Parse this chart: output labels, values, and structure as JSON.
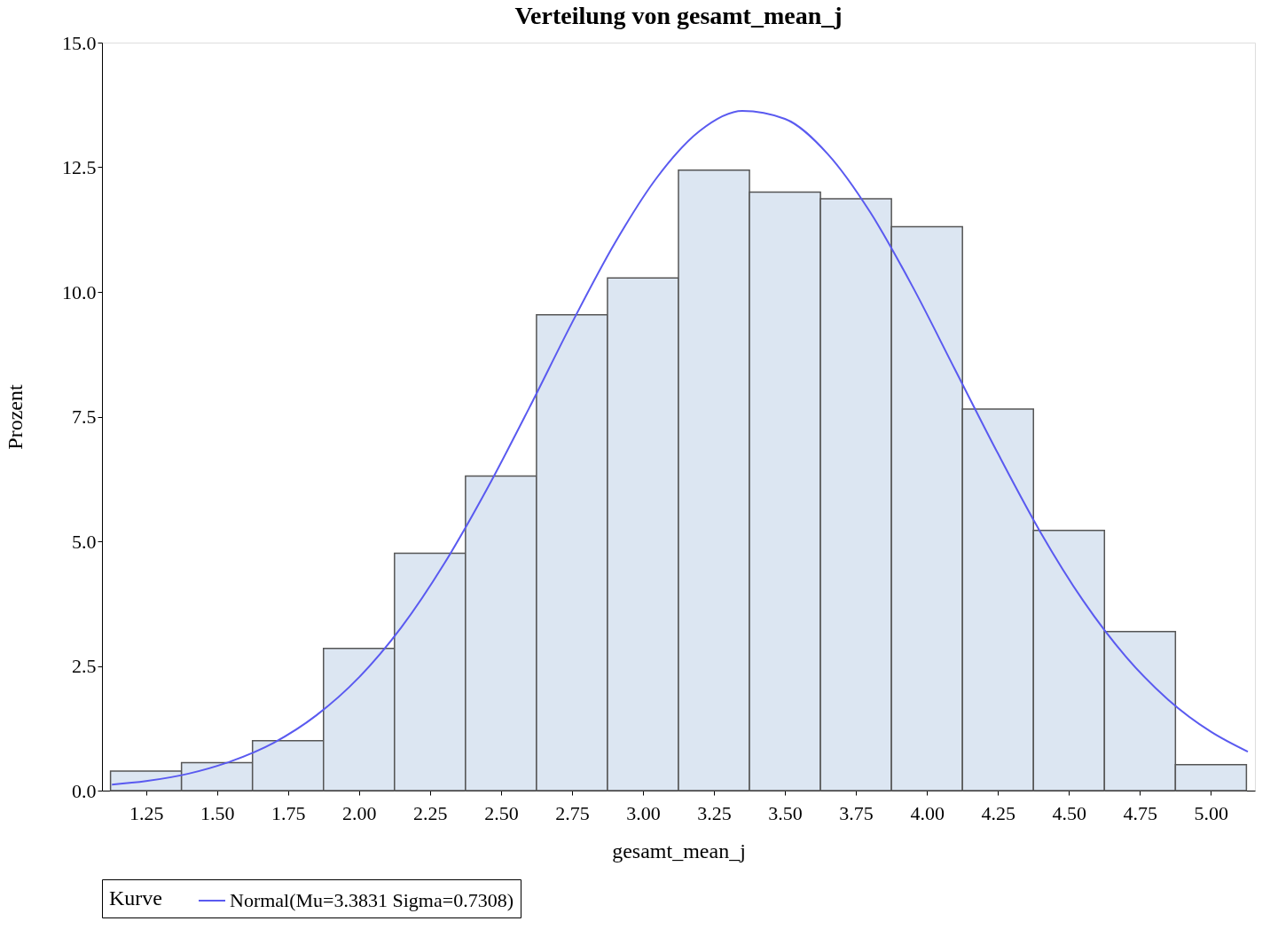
{
  "chart_data": {
    "type": "histogram",
    "title": "Verteilung von gesamt_mean_j",
    "xlabel": "gesamt_mean_j",
    "ylabel": "Prozent",
    "legend_title": "Kurve",
    "legend": "bottom",
    "grid": false,
    "bins": [
      1.125,
      1.375,
      1.625,
      1.875,
      2.125,
      2.375,
      2.625,
      2.875,
      3.125,
      3.375,
      3.625,
      3.875,
      4.125,
      4.375,
      4.625,
      4.875,
      5.125
    ],
    "series": [
      {
        "color": "#dce6f2",
        "values": [
          0.39,
          0.56,
          1.0,
          2.85,
          4.76,
          6.31,
          9.54,
          10.28,
          12.44,
          12.0,
          11.87,
          11.31,
          7.65,
          5.22,
          3.19,
          0.52
        ]
      },
      {
        "type": "line",
        "name": "Normal(Mu=3.3831 Sigma=0.7308)",
        "color": "#5a5af0",
        "x": [
          1.13,
          1.25,
          1.4,
          1.55,
          1.7,
          1.85,
          2.0,
          2.15,
          2.3,
          2.45,
          2.6,
          2.75,
          2.9,
          3.05,
          3.2,
          3.35,
          3.5,
          3.65,
          3.8,
          3.95,
          4.1,
          4.25,
          4.4,
          4.55,
          4.7,
          4.85,
          5.0,
          5.13
        ],
        "values": [
          0.12,
          0.19,
          0.34,
          0.59,
          0.96,
          1.51,
          2.27,
          3.28,
          4.55,
          6.04,
          7.68,
          9.38,
          10.97,
          12.3,
          13.23,
          13.63,
          13.47,
          12.77,
          11.6,
          10.1,
          8.43,
          6.76,
          5.18,
          3.81,
          2.69,
          1.82,
          1.18,
          0.78
        ]
      }
    ],
    "xlim": [
      1.095,
      5.155
    ],
    "xticks": [
      {
        "value": 1.25,
        "label": "1.25"
      },
      {
        "value": 1.5,
        "label": "1.50"
      },
      {
        "value": 1.75,
        "label": "1.75"
      },
      {
        "value": 2,
        "label": "2.00"
      },
      {
        "value": 2.25,
        "label": "2.25"
      },
      {
        "value": 2.5,
        "label": "2.50"
      },
      {
        "value": 2.75,
        "label": "2.75"
      },
      {
        "value": 3,
        "label": "3.00"
      },
      {
        "value": 3.25,
        "label": "3.25"
      },
      {
        "value": 3.5,
        "label": "3.50"
      },
      {
        "value": 3.75,
        "label": "3.75"
      },
      {
        "value": 4,
        "label": "4.00"
      },
      {
        "value": 4.25,
        "label": "4.25"
      },
      {
        "value": 4.5,
        "label": "4.50"
      },
      {
        "value": 4.75,
        "label": "4.75"
      },
      {
        "value": 5,
        "label": "5.00"
      }
    ],
    "ylim": [
      0,
      15
    ],
    "yticks": [
      {
        "value": 0,
        "label": "0.0"
      },
      {
        "value": 2.5,
        "label": "2.5"
      },
      {
        "value": 5,
        "label": "5.0"
      },
      {
        "value": 7.5,
        "label": "7.5"
      },
      {
        "value": 10,
        "label": "10.0"
      },
      {
        "value": 12.5,
        "label": "12.5"
      },
      {
        "value": 15,
        "label": "15.0"
      }
    ]
  }
}
